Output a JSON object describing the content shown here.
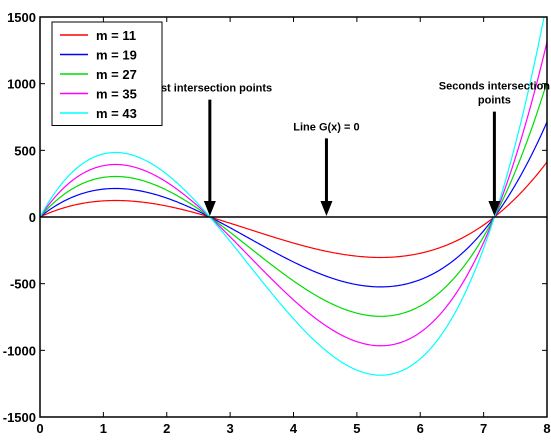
{
  "chart_data": {
    "type": "line",
    "title": "",
    "xlabel": "",
    "ylabel": "",
    "xlim": [
      0,
      8
    ],
    "ylim": [
      -1500,
      1500
    ],
    "x_ticks": [
      0,
      1,
      2,
      3,
      4,
      5,
      6,
      7,
      8
    ],
    "y_ticks": [
      -1500,
      -1000,
      -500,
      0,
      500,
      1000,
      1500
    ],
    "grid": false,
    "legend_position": "top-left",
    "roots": [
      0,
      2.68,
      7.17
    ],
    "series": [
      {
        "name": "m = 11",
        "color": "#ff0000",
        "m": 11,
        "x": [
          0,
          0.5,
          1,
          1.5,
          2,
          2.5,
          2.68,
          3,
          3.5,
          4,
          4.5,
          5,
          5.5,
          6,
          6.5,
          7,
          7.17,
          7.5,
          8
        ],
        "y": [
          0,
          95,
          121,
          108,
          69,
          18,
          0,
          -35,
          -110,
          -185,
          -243,
          -275,
          -286,
          -262,
          -200,
          -73,
          0,
          130,
          430
        ]
      },
      {
        "name": "m = 19",
        "color": "#0000ff",
        "m": 19,
        "x": [
          0,
          0.5,
          1,
          1.5,
          2,
          2.5,
          2.68,
          3,
          3.5,
          4,
          4.5,
          5,
          5.5,
          6,
          6.5,
          7,
          7.17,
          7.5,
          8
        ],
        "y": [
          0,
          163,
          209,
          187,
          119,
          31,
          0,
          -60,
          -190,
          -320,
          -420,
          -476,
          -494,
          -453,
          -346,
          -126,
          0,
          225,
          743
        ]
      },
      {
        "name": "m = 27",
        "color": "#00dd00",
        "m": 27,
        "x": [
          0,
          0.5,
          1,
          1.5,
          2,
          2.5,
          2.68,
          3,
          3.5,
          4,
          4.5,
          5,
          5.5,
          6,
          6.5,
          7,
          7.17,
          7.5,
          8
        ],
        "y": [
          0,
          232,
          297,
          265,
          169,
          44,
          0,
          -86,
          -270,
          -455,
          -597,
          -676,
          -702,
          -644,
          -492,
          -179,
          0,
          320,
          1055
        ]
      },
      {
        "name": "m = 35",
        "color": "#ff00ff",
        "m": 35,
        "x": [
          0,
          0.5,
          1,
          1.5,
          2,
          2.5,
          2.68,
          3,
          3.5,
          4,
          4.5,
          5,
          5.5,
          6,
          6.5,
          7,
          7.17,
          7.5,
          8
        ],
        "y": [
          0,
          301,
          385,
          344,
          219,
          57,
          0,
          -111,
          -350,
          -589,
          -774,
          -877,
          -910,
          -835,
          -638,
          -232,
          0,
          415,
          1368
        ]
      },
      {
        "name": "m = 43",
        "color": "#00ffff",
        "m": 43,
        "x": [
          0,
          0.5,
          1,
          1.5,
          2,
          2.5,
          2.68,
          3,
          3.5,
          4,
          4.5,
          5,
          5.5,
          6,
          6.5,
          7,
          7.17,
          7.5,
          8
        ],
        "y": [
          0,
          369,
          473,
          423,
          269,
          70,
          0,
          -137,
          -430,
          -724,
          -951,
          -1077,
          -1118,
          -1026,
          -784,
          -285,
          0,
          510,
          1680
        ]
      }
    ],
    "reference_line": {
      "y": 0,
      "color": "#000000"
    },
    "annotations": [
      {
        "text": "Fitst intersection points",
        "lines": [
          "Fitst intersection points"
        ],
        "arrow_x": 2.68,
        "from_y": 880,
        "to_y": 0
      },
      {
        "text": "Line G(x) = 0",
        "lines": [
          "Line G(x) = 0"
        ],
        "arrow_x": 4.52,
        "from_y": 590,
        "to_y": 0
      },
      {
        "text": "Seconds intersection points",
        "lines": [
          "Seconds intersection",
          "points"
        ],
        "arrow_x": 7.17,
        "from_y": 790,
        "to_y": 0
      }
    ]
  }
}
